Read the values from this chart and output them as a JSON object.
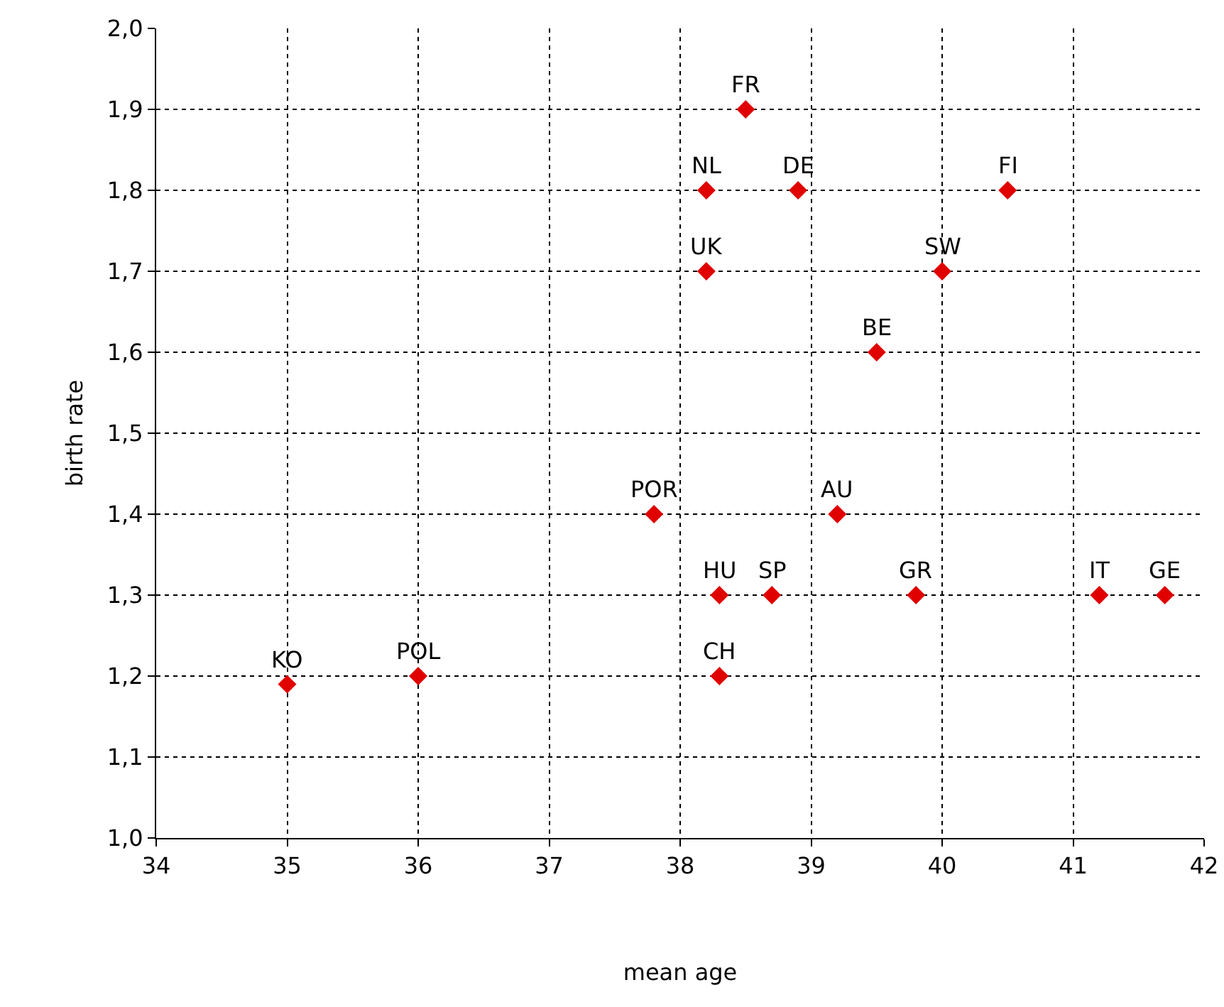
{
  "chart_data": {
    "type": "scatter",
    "xlabel": "mean age",
    "ylabel": "birth rate",
    "x": [
      38.5,
      38.2,
      38.9,
      40.5,
      38.2,
      40.0,
      39.5,
      37.8,
      39.2,
      38.3,
      38.7,
      39.8,
      41.2,
      41.7,
      38.3,
      35.0,
      36.0
    ],
    "series": [
      {
        "color": "#e00000",
        "values": [
          1.9,
          1.8,
          1.8,
          1.8,
          1.7,
          1.7,
          1.6,
          1.4,
          1.4,
          1.3,
          1.3,
          1.3,
          1.3,
          1.3,
          1.2,
          1.19,
          1.2
        ]
      }
    ],
    "annotations": [
      {
        "text": "FR",
        "x": 38.5,
        "y": 1.9
      },
      {
        "text": "NL",
        "x": 38.2,
        "y": 1.8
      },
      {
        "text": "DE",
        "x": 38.9,
        "y": 1.8
      },
      {
        "text": "FI",
        "x": 40.5,
        "y": 1.8
      },
      {
        "text": "UK",
        "x": 38.2,
        "y": 1.7
      },
      {
        "text": "SW",
        "x": 40.0,
        "y": 1.7
      },
      {
        "text": "BE",
        "x": 39.5,
        "y": 1.6
      },
      {
        "text": "POR",
        "x": 37.8,
        "y": 1.4
      },
      {
        "text": "AU",
        "x": 39.2,
        "y": 1.4
      },
      {
        "text": "HU",
        "x": 38.3,
        "y": 1.3
      },
      {
        "text": "SP",
        "x": 38.7,
        "y": 1.3
      },
      {
        "text": "GR",
        "x": 39.8,
        "y": 1.3
      },
      {
        "text": "IT",
        "x": 41.2,
        "y": 1.3
      },
      {
        "text": "GE",
        "x": 41.7,
        "y": 1.3
      },
      {
        "text": "CH",
        "x": 38.3,
        "y": 1.2
      },
      {
        "text": "KO",
        "x": 35.0,
        "y": 1.19
      },
      {
        "text": "POL",
        "x": 36.0,
        "y": 1.2
      }
    ],
    "xlim": [
      34,
      42
    ],
    "xticks": [
      34,
      35,
      36,
      37,
      38,
      39,
      40,
      41,
      42
    ],
    "ylim": [
      1.0,
      2.0
    ],
    "yticks": [
      {
        "value": 1.0,
        "label": "1,0"
      },
      {
        "value": 1.1,
        "label": "1,1"
      },
      {
        "value": 1.2,
        "label": "1,2"
      },
      {
        "value": 1.3,
        "label": "1,3"
      },
      {
        "value": 1.4,
        "label": "1,4"
      },
      {
        "value": 1.5,
        "label": "1,5"
      },
      {
        "value": 1.6,
        "label": "1,6"
      },
      {
        "value": 1.7,
        "label": "1,7"
      },
      {
        "value": 1.8,
        "label": "1,8"
      },
      {
        "value": 1.9,
        "label": "1,9"
      },
      {
        "value": 2.0,
        "label": "2,0"
      }
    ],
    "grid": true,
    "marker": "diamond"
  }
}
